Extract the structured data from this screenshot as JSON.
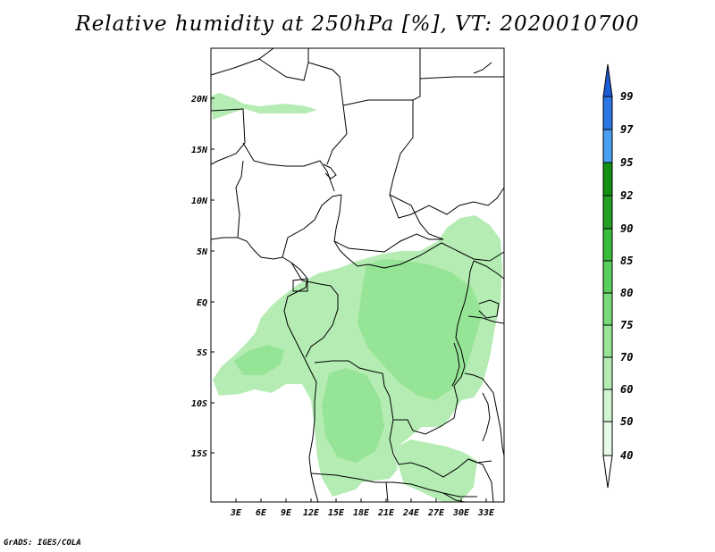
{
  "title": "Relative humidity at 250hPa [%], VT: 2020010700",
  "credit": "GrADS: IGES/COLA",
  "map": {
    "lon_range": [
      0,
      35
    ],
    "lat_range": [
      -20,
      25
    ],
    "x_ticks": [
      "3E",
      "6E",
      "9E",
      "12E",
      "15E",
      "18E",
      "21E",
      "24E",
      "27E",
      "30E",
      "33E"
    ],
    "y_ticks": [
      "20N",
      "15N",
      "10N",
      "5N",
      "EQ",
      "5S",
      "10S",
      "15S"
    ]
  },
  "colorbar": {
    "levels": [
      "40",
      "50",
      "60",
      "70",
      "75",
      "80",
      "85",
      "90",
      "92",
      "95",
      "97",
      "99"
    ],
    "colors": [
      "#ffffff",
      "#e6fae6",
      "#d0f5d0",
      "#b4ecb4",
      "#96e496",
      "#78da78",
      "#5ace5a",
      "#3cbc3c",
      "#22a022",
      "#129012",
      "#4aa0ee",
      "#2a76e6",
      "#1a5cd6"
    ]
  }
}
